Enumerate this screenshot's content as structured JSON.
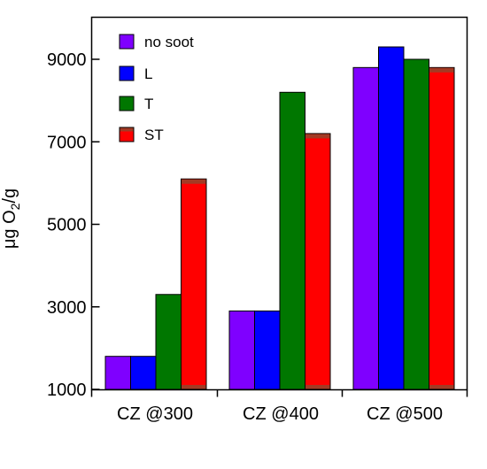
{
  "chart_data": {
    "type": "bar",
    "categories": [
      "CZ @300",
      "CZ @400",
      "CZ @500"
    ],
    "series": [
      {
        "name": "no soot",
        "color": "#7f00ff",
        "values": [
          1800,
          2900,
          8800
        ]
      },
      {
        "name": "L",
        "color": "#0000ff",
        "values": [
          1800,
          2900,
          9300
        ]
      },
      {
        "name": "T",
        "color": "#007700",
        "values": [
          3300,
          8200,
          9000
        ]
      },
      {
        "name": "ST",
        "color": "#ff0000",
        "top_color": "#a33a24",
        "values": [
          6100,
          7200,
          8800
        ]
      }
    ],
    "ylabel_text": "μg O",
    "ylabel_sub": "2",
    "ylabel_unit": "/g",
    "yticks": [
      1000,
      3000,
      5000,
      7000,
      9000
    ],
    "ytick_labels": [
      "1000",
      "3000",
      "5000",
      "7000",
      "9000"
    ],
    "ylim": [
      1000,
      9800
    ],
    "legend_position": "top-left",
    "grid": false
  }
}
